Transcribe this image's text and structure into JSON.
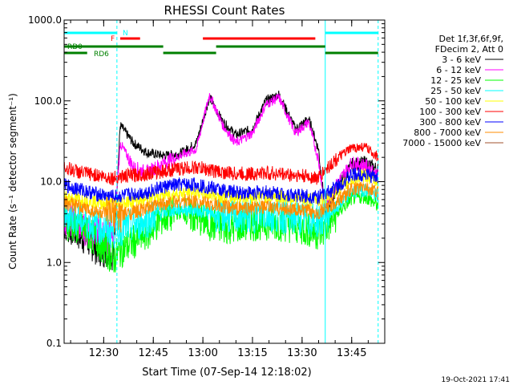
{
  "title": "RHESSI Count Rates",
  "timestamp": "19-Oct-2021 17:41",
  "chart_data": {
    "type": "line",
    "title": "RHESSI Count Rates",
    "xlabel": "Start Time (07-Sep-14 12:18:02)",
    "ylabel": "Count Rate (s⁻¹ detector segment⁻¹)",
    "y_scale": "log",
    "ylim": [
      0.1,
      1000
    ],
    "xlim": [
      "12:18:02",
      "13:55:00"
    ],
    "x_ticks": [
      "12:30",
      "12:45",
      "13:00",
      "13:15",
      "13:30",
      "13:45"
    ],
    "y_ticks": [
      "0.1",
      "1.0",
      "10.0",
      "100.0",
      "1000.0"
    ],
    "grid": false,
    "legend_position": "right",
    "legend_header": [
      "Det 1f,3f,6f,9f,",
      "FDecim 2, Att 0"
    ],
    "x": [
      "12:18",
      "12:23",
      "12:28",
      "12:33",
      "12:35",
      "12:39",
      "12:43",
      "12:48",
      "12:53",
      "12:58",
      "13:02",
      "13:06",
      "13:10",
      "13:15",
      "13:19",
      "13:23",
      "13:28",
      "13:32",
      "13:35",
      "13:37",
      "13:41",
      "13:45",
      "13:49",
      "13:53"
    ],
    "series": [
      {
        "name": "3 - 6 keV",
        "color": "#000000",
        "values": [
          3.0,
          2.2,
          1.5,
          1.3,
          50,
          30,
          23,
          21,
          22,
          30,
          110,
          55,
          38,
          45,
          100,
          120,
          45,
          60,
          25,
          4,
          9,
          16,
          17,
          14
        ]
      },
      {
        "name": "6 - 12 keV",
        "color": "#ff00ff",
        "values": [
          3.5,
          2.8,
          2.2,
          2.0,
          30,
          15,
          13,
          17,
          21,
          25,
          120,
          50,
          30,
          40,
          90,
          110,
          40,
          55,
          18,
          5,
          10,
          17,
          16,
          12
        ]
      },
      {
        "name": "12 - 25 keV",
        "color": "#00ff00",
        "values": [
          3.2,
          2.6,
          1.9,
          1.1,
          1.4,
          1.8,
          2.3,
          3.6,
          4.2,
          3.6,
          3.0,
          2.7,
          2.8,
          3.0,
          3.1,
          3.0,
          2.8,
          2.5,
          2.3,
          2.6,
          4.2,
          6.2,
          6.6,
          5.0
        ]
      },
      {
        "name": "25 - 50 keV",
        "color": "#00ffff",
        "values": [
          4.0,
          3.4,
          2.8,
          2.4,
          2.6,
          2.9,
          3.3,
          4.2,
          4.6,
          4.5,
          4.1,
          3.8,
          3.7,
          3.8,
          3.9,
          3.8,
          3.6,
          3.4,
          3.3,
          3.6,
          5.0,
          7.4,
          8.0,
          6.6
        ]
      },
      {
        "name": "50 - 100 keV",
        "color": "#ffff00",
        "values": [
          6.5,
          6.0,
          5.6,
          5.3,
          5.5,
          5.8,
          6.0,
          6.8,
          7.2,
          7.4,
          7.0,
          6.6,
          6.4,
          6.5,
          6.6,
          6.5,
          6.2,
          6.0,
          6.0,
          6.3,
          8.0,
          10.5,
          12.0,
          10.0
        ]
      },
      {
        "name": "100 - 300 keV",
        "color": "#ff0000",
        "values": [
          15,
          13,
          12,
          11,
          11.5,
          12,
          12.5,
          13.5,
          14.5,
          15,
          14,
          13,
          12.5,
          12.5,
          12.8,
          12.5,
          12,
          11.5,
          11,
          14,
          20,
          26,
          27,
          20
        ]
      },
      {
        "name": "300 - 800 keV",
        "color": "#0000ff",
        "values": [
          9.0,
          8.0,
          7.0,
          6.5,
          6.6,
          7.0,
          7.4,
          8.6,
          9.2,
          9.2,
          8.5,
          7.8,
          7.4,
          7.3,
          7.4,
          7.2,
          6.8,
          6.6,
          6.5,
          7.0,
          9.0,
          12.0,
          12.5,
          11.0
        ]
      },
      {
        "name": "800 - 7000 keV",
        "color": "#ff8c00",
        "values": [
          5.5,
          4.8,
          4.2,
          3.8,
          3.9,
          4.2,
          4.6,
          5.4,
          5.8,
          5.7,
          5.3,
          4.9,
          4.7,
          4.7,
          4.8,
          4.7,
          4.5,
          4.3,
          4.2,
          4.5,
          6.0,
          8.0,
          8.6,
          7.2
        ]
      },
      {
        "name": "7000 - 15000 keV",
        "color": "#a0522d",
        "values": [
          null,
          null,
          null,
          null,
          null,
          null,
          null,
          null,
          null,
          null,
          null,
          null,
          null,
          null,
          null,
          null,
          null,
          null,
          null,
          null,
          null,
          null,
          null,
          null
        ]
      }
    ],
    "vlines": [
      {
        "time": "12:18:02",
        "color": "#00ffff",
        "style": "solid"
      },
      {
        "time": "12:34",
        "color": "#00ffff",
        "style": "dashed"
      },
      {
        "time": "13:37",
        "color": "#00ffff",
        "style": "solid"
      },
      {
        "time": "13:53",
        "color": "#00ffff",
        "style": "dashed"
      }
    ],
    "flag_bars": [
      {
        "label": "N",
        "color": "#00ffff",
        "segments": [
          [
            "12:18:02",
            "12:34"
          ],
          [
            "13:37",
            "13:53"
          ]
        ]
      },
      {
        "label": "F",
        "color": "#ff0000",
        "segments": [
          [
            "12:35",
            "12:41"
          ],
          [
            "13:00",
            "13:34"
          ]
        ]
      },
      {
        "label": "RD0",
        "color": "#008000",
        "segments": [
          [
            "12:18:02",
            "12:48"
          ],
          [
            "13:04",
            "13:37"
          ]
        ]
      },
      {
        "label": "RD6",
        "color": "#008000",
        "segments": [
          [
            "12:18:02",
            "12:25"
          ],
          [
            "12:48",
            "13:04"
          ],
          [
            "13:37",
            "13:53"
          ]
        ]
      }
    ]
  }
}
